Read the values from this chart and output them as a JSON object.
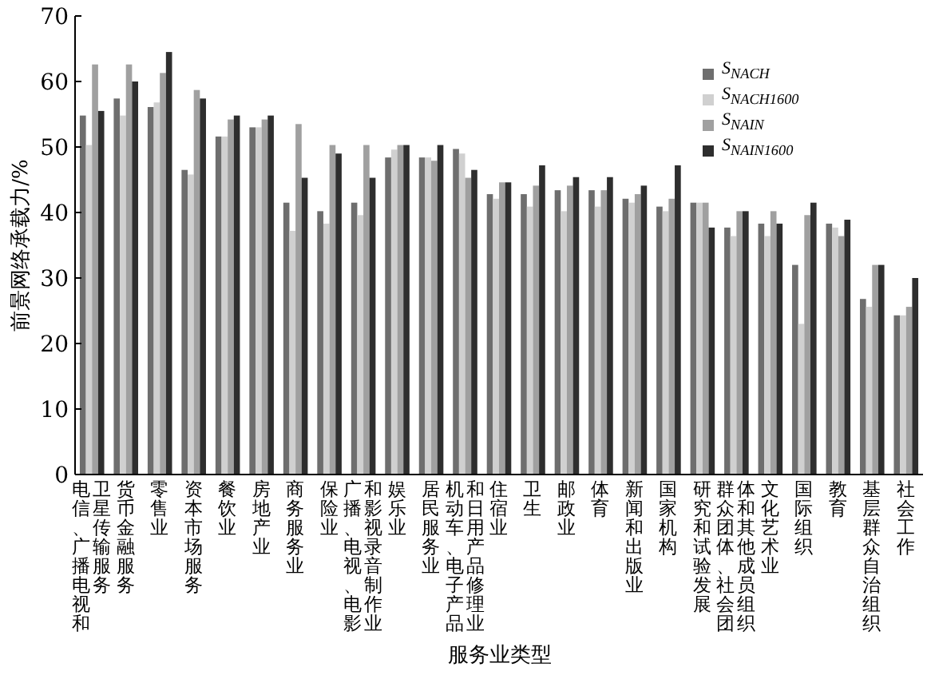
{
  "chart_data": {
    "type": "bar",
    "xlabel": "服务业类型",
    "ylabel": "前景网络承载力/%",
    "categories": [
      "电信、广播电视和卫星传输服务",
      "货币金融服务",
      "零售业",
      "资本市场服务",
      "餐饮业",
      "房地产业",
      "商务服务业",
      "保险业",
      "广播、电视、电影和影视录音制作业",
      "娱乐业",
      "居民服务业",
      "机动车、电子产品和日用产品修理业",
      "住宿业",
      "卫生",
      "邮政业",
      "体育",
      "新闻和出版业",
      "国家机构",
      "研究和试验发展",
      "群众团体、社会团体和其他成员组织",
      "文化艺术业",
      "国际组织",
      "教育",
      "基层群众自治组织",
      "社会工作"
    ],
    "series": [
      {
        "name": "S$_{NACH}$",
        "color": "#6e6e6e",
        "values": [
          54.8,
          57.4,
          56.1,
          46.5,
          51.6,
          53.0,
          41.5,
          40.2,
          41.5,
          48.4,
          48.4,
          49.7,
          42.8,
          42.8,
          43.4,
          43.4,
          42.1,
          40.9,
          41.5,
          37.7,
          38.3,
          32.0,
          38.3,
          26.8,
          24.3
        ]
      },
      {
        "name": "S$_{NACH1600}$",
        "color": "#d0d0d0",
        "values": [
          50.3,
          54.8,
          56.8,
          45.8,
          51.6,
          53.0,
          37.2,
          38.3,
          39.6,
          49.6,
          48.4,
          49.0,
          42.1,
          40.9,
          40.2,
          40.9,
          41.5,
          40.2,
          41.5,
          36.4,
          36.4,
          23.0,
          37.7,
          25.6,
          24.3
        ]
      },
      {
        "name": "S$_{NAIN}$",
        "color": "#a0a0a0",
        "values": [
          62.6,
          62.6,
          61.3,
          58.7,
          54.2,
          54.2,
          53.5,
          50.3,
          50.3,
          50.3,
          47.9,
          45.3,
          44.6,
          44.1,
          44.1,
          43.4,
          42.8,
          42.1,
          41.5,
          40.2,
          40.2,
          39.6,
          36.4,
          32.0,
          25.6
        ]
      },
      {
        "name": "S$_{NAIN1600}$",
        "color": "#2e2e2e",
        "values": [
          55.5,
          60.0,
          64.5,
          57.4,
          54.8,
          54.8,
          45.3,
          49.0,
          45.3,
          50.3,
          50.3,
          46.5,
          44.6,
          47.2,
          45.4,
          45.4,
          44.1,
          47.2,
          37.7,
          40.2,
          38.3,
          41.5,
          38.9,
          32.0,
          30.0
        ]
      }
    ],
    "ylim": [
      0,
      70
    ],
    "yticks": [
      0,
      10,
      20,
      30,
      40,
      50,
      60,
      70
    ],
    "legend": "top right"
  }
}
